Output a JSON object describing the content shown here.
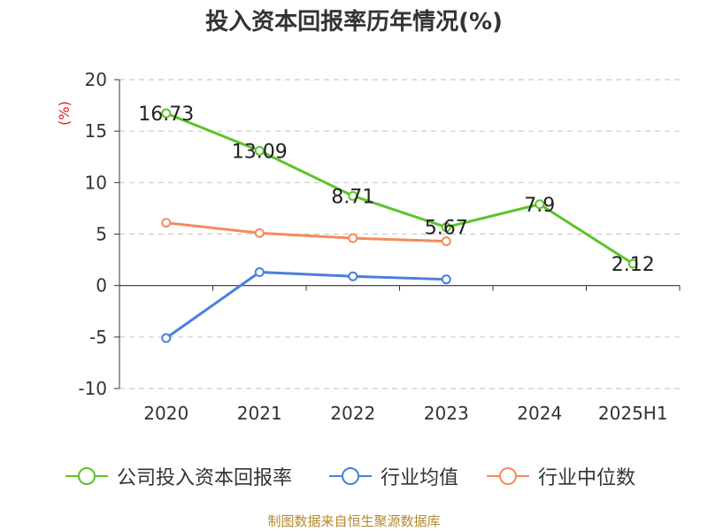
{
  "title": "投入资本回报率历年情况(%)",
  "footer": "制图数据来自恒生聚源数据库",
  "chart_data": {
    "type": "line",
    "title": "投入资本回报率历年情况(%)",
    "ylabel": "(%)",
    "ylim": [
      -10,
      20
    ],
    "yticks": [
      20,
      15,
      10,
      5,
      0,
      -5,
      -10
    ],
    "grid": true,
    "legend_position": "bottom",
    "categories": [
      "2020",
      "2021",
      "2022",
      "2023",
      "2024",
      "2025H1"
    ],
    "series": [
      {
        "name": "公司投入资本回报率",
        "color": "#5dc32a",
        "values": [
          16.73,
          13.09,
          8.71,
          5.67,
          7.9,
          2.12
        ],
        "labels": [
          "16.73",
          "13.09",
          "8.71",
          "5.67",
          "7.9",
          "2.12"
        ]
      },
      {
        "name": "行业均值",
        "color": "#4a7fdc",
        "values": [
          -5.1,
          1.3,
          0.9,
          0.6,
          null,
          null
        ]
      },
      {
        "name": "行业中位数",
        "color": "#f58a5b",
        "values": [
          6.1,
          5.1,
          4.6,
          4.3,
          null,
          null
        ]
      }
    ]
  }
}
